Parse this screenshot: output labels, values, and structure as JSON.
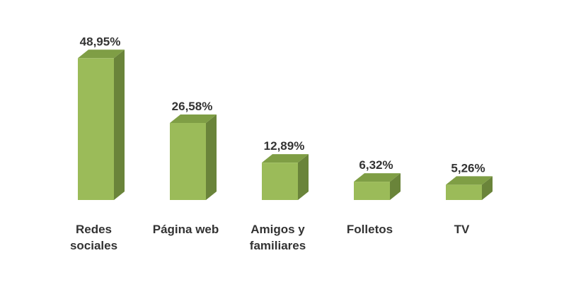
{
  "chart_data": {
    "type": "bar",
    "style": "3d-column",
    "categories": [
      [
        "Redes",
        "sociales"
      ],
      [
        "Página web"
      ],
      [
        "Amigos y",
        "familiares"
      ],
      [
        "Folletos"
      ],
      [
        "TV"
      ]
    ],
    "values": [
      48.95,
      26.58,
      12.89,
      6.32,
      5.26
    ],
    "value_labels": [
      "48,95%",
      "26,58%",
      "12,89%",
      "6,32%",
      "5,26%"
    ],
    "title": "",
    "xlabel": "",
    "ylabel": "",
    "ylim": [
      0,
      55
    ],
    "grid": false,
    "legend": "none",
    "colors": {
      "front": "#9bbb59",
      "top": "#7f9e45",
      "side": "#6a843a",
      "text": "#333333"
    }
  }
}
